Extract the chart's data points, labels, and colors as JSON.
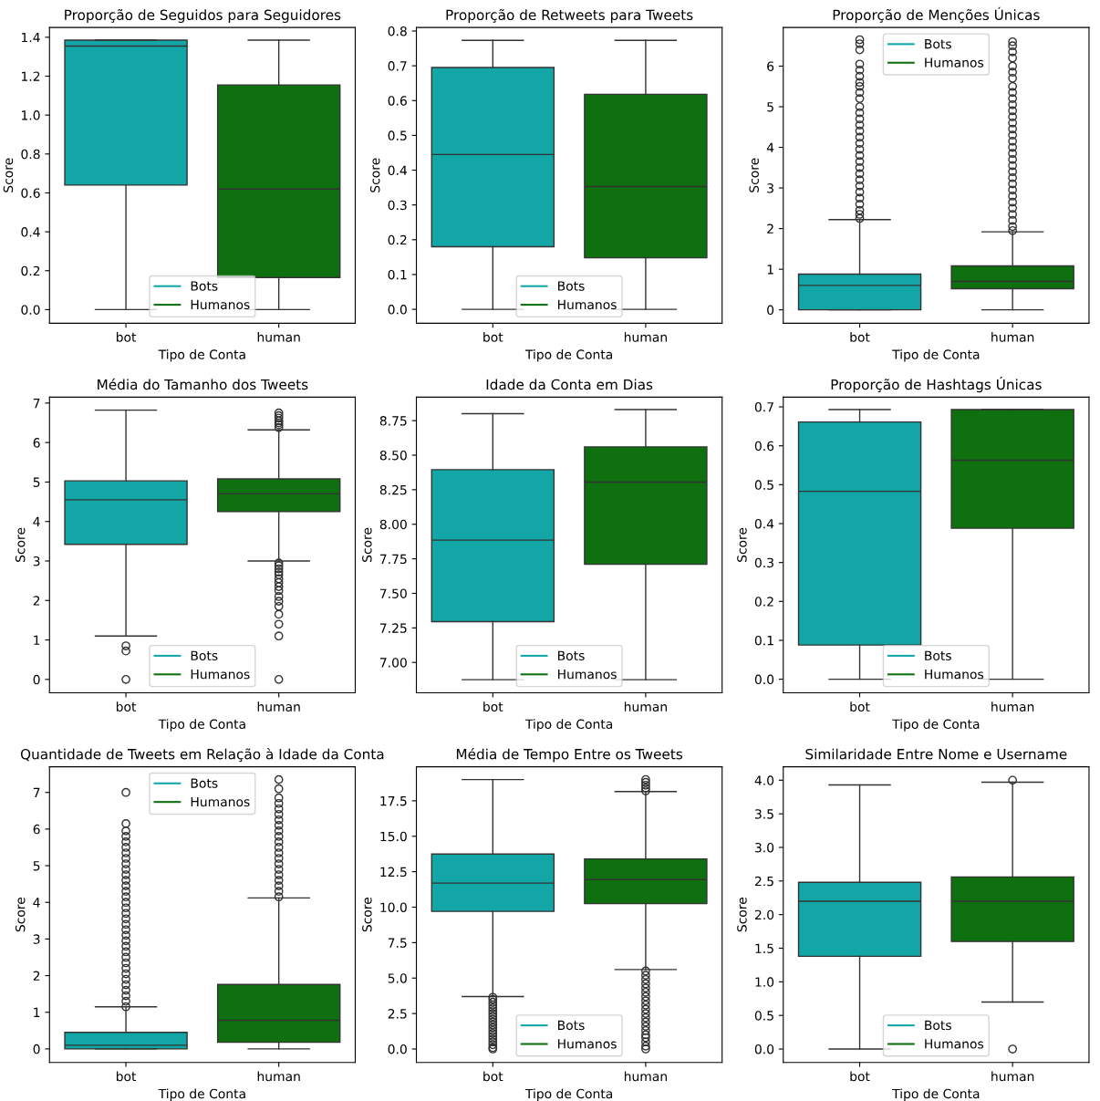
{
  "chart_data": [
    {
      "type": "box",
      "title": "Proporção de Seguidos para Seguidores",
      "xlabel": "Tipo de Conta",
      "ylabel": "Score",
      "categories": [
        "bot",
        "human"
      ],
      "ylim": [
        -0.07,
        1.45
      ],
      "yticks": [
        {
          "value": 0,
          "label": "0.0"
        },
        0.2,
        0.4,
        0.6,
        0.8,
        {
          "value": 1,
          "label": "1.0"
        },
        1.2,
        1.4
      ],
      "legend": "bottom",
      "series": [
        {
          "name": "Bots",
          "color": "#13a6a6",
          "boxes": [
            {
              "low": 0,
              "q1": 0.64,
              "median": 1.355,
              "q3": 1.385,
              "high": 1.385
            },
            null
          ]
        },
        {
          "name": "Humanos",
          "color": "#0e700e",
          "boxes": [
            null,
            {
              "low": 0,
              "q1": 0.165,
              "median": 0.62,
              "q3": 1.155,
              "high": 1.385
            }
          ]
        }
      ]
    },
    {
      "type": "box",
      "title": "Proporção de Retweets para Tweets",
      "xlabel": "Tipo de Conta",
      "ylabel": "Score",
      "categories": [
        "bot",
        "human"
      ],
      "ylim": [
        -0.04,
        0.81
      ],
      "yticks": [
        {
          "value": 0,
          "label": "0.0"
        },
        0.1,
        0.2,
        0.3,
        0.4,
        0.5,
        0.6,
        0.7,
        0.8
      ],
      "legend": "bottom",
      "series": [
        {
          "name": "Bots",
          "color": "#13a6a6",
          "boxes": [
            {
              "low": 0,
              "q1": 0.18,
              "median": 0.445,
              "q3": 0.695,
              "high": 0.773
            },
            null
          ]
        },
        {
          "name": "Humanos",
          "color": "#0e700e",
          "boxes": [
            null,
            {
              "low": 0,
              "q1": 0.148,
              "median": 0.353,
              "q3": 0.618,
              "high": 0.773
            }
          ]
        }
      ]
    },
    {
      "type": "box",
      "title": "Proporção de Menções Únicas",
      "xlabel": "Tipo de Conta",
      "ylabel": "Score",
      "categories": [
        "bot",
        "human"
      ],
      "ylim": [
        -0.33,
        6.95
      ],
      "yticks": [
        0,
        1,
        2,
        3,
        4,
        5,
        6
      ],
      "legend": "top",
      "series": [
        {
          "name": "Bots",
          "color": "#13a6a6",
          "boxes": [
            {
              "low": 0,
              "q1": 0,
              "median": 0.6,
              "q3": 0.88,
              "high": 2.22,
              "outliers": [
                2.25,
                2.35,
                2.45,
                2.6,
                2.75,
                2.9,
                3.05,
                3.2,
                3.35,
                3.5,
                3.65,
                3.8,
                3.95,
                4.1,
                4.25,
                4.4,
                4.55,
                4.7,
                4.85,
                5.0,
                5.2,
                5.35,
                5.5,
                5.6,
                5.75,
                5.9,
                6.05,
                6.4,
                6.55,
                6.65
              ]
            },
            null
          ]
        },
        {
          "name": "Humanos",
          "color": "#0e700e",
          "boxes": [
            null,
            {
              "low": 0,
              "q1": 0.52,
              "median": 0.7,
              "q3": 1.08,
              "high": 1.92,
              "outliers": [
                1.95,
                2.05,
                2.2,
                2.35,
                2.5,
                2.65,
                2.8,
                2.95,
                3.1,
                3.25,
                3.4,
                3.55,
                3.7,
                3.85,
                4.0,
                4.15,
                4.3,
                4.45,
                4.6,
                4.75,
                4.9,
                5.05,
                5.2,
                5.35,
                5.5,
                5.7,
                5.85,
                6.0,
                6.2,
                6.35,
                6.5,
                6.6
              ]
            }
          ]
        }
      ]
    },
    {
      "type": "box",
      "title": "Média do Tamanho dos Tweets",
      "xlabel": "Tipo de Conta",
      "ylabel": "Score",
      "categories": [
        "bot",
        "human"
      ],
      "ylim": [
        -0.34,
        7.15
      ],
      "yticks": [
        0,
        1,
        2,
        3,
        4,
        5,
        6,
        7
      ],
      "legend": "bottom",
      "series": [
        {
          "name": "Bots",
          "color": "#13a6a6",
          "boxes": [
            {
              "low": 1.1,
              "q1": 3.42,
              "median": 4.55,
              "q3": 5.03,
              "high": 6.82,
              "outliers": [
                0.85,
                0.72,
                0.0
              ]
            },
            null
          ]
        },
        {
          "name": "Humanos",
          "color": "#0e700e",
          "boxes": [
            null,
            {
              "low": 3.0,
              "q1": 4.25,
              "median": 4.7,
              "q3": 5.08,
              "high": 6.32,
              "outliers": [
                6.38,
                6.45,
                6.5,
                6.55,
                6.62,
                6.68,
                6.75,
                2.95,
                2.88,
                2.8,
                2.72,
                2.65,
                2.55,
                2.45,
                2.35,
                2.25,
                2.1,
                1.98,
                1.85,
                1.65,
                1.4,
                1.1,
                0.0
              ]
            }
          ]
        }
      ]
    },
    {
      "type": "box",
      "title": "Idade da Conta em Dias",
      "xlabel": "Tipo de Conta",
      "ylabel": "Score",
      "categories": [
        "bot",
        "human"
      ],
      "ylim": [
        6.78,
        8.92
      ],
      "yticks": [
        {
          "value": 7.0,
          "label": "7.00"
        },
        {
          "value": 7.25,
          "label": "7.25"
        },
        {
          "value": 7.5,
          "label": "7.50"
        },
        {
          "value": 7.75,
          "label": "7.75"
        },
        {
          "value": 8.0,
          "label": "8.00"
        },
        {
          "value": 8.25,
          "label": "8.25"
        },
        {
          "value": 8.5,
          "label": "8.50"
        },
        {
          "value": 8.75,
          "label": "8.75"
        }
      ],
      "legend": "bottom",
      "series": [
        {
          "name": "Bots",
          "color": "#13a6a6",
          "boxes": [
            {
              "low": 6.875,
              "q1": 7.295,
              "median": 7.885,
              "q3": 8.395,
              "high": 8.8
            },
            null
          ]
        },
        {
          "name": "Humanos",
          "color": "#0e700e",
          "boxes": [
            null,
            {
              "low": 6.875,
              "q1": 7.71,
              "median": 8.305,
              "q3": 8.56,
              "high": 8.83
            }
          ]
        }
      ]
    },
    {
      "type": "box",
      "title": "Proporção de Hashtags Únicas",
      "xlabel": "Tipo de Conta",
      "ylabel": "Score",
      "categories": [
        "bot",
        "human"
      ],
      "ylim": [
        -0.035,
        0.725
      ],
      "yticks": [
        {
          "value": 0,
          "label": "0.0"
        },
        0.1,
        0.2,
        0.3,
        0.4,
        0.5,
        0.6,
        0.7
      ],
      "legend": "bottom",
      "series": [
        {
          "name": "Bots",
          "color": "#13a6a6",
          "boxes": [
            {
              "low": 0,
              "q1": 0.088,
              "median": 0.483,
              "q3": 0.661,
              "high": 0.693
            },
            null
          ]
        },
        {
          "name": "Humanos",
          "color": "#0e700e",
          "boxes": [
            null,
            {
              "low": 0,
              "q1": 0.388,
              "median": 0.563,
              "q3": 0.693,
              "high": 0.693
            }
          ]
        }
      ]
    },
    {
      "type": "box",
      "title": "Quantidade de Tweets em Relação à Idade da Conta",
      "xlabel": "Tipo de Conta",
      "ylabel": "Score",
      "categories": [
        "bot",
        "human"
      ],
      "ylim": [
        -0.37,
        7.7
      ],
      "yticks": [
        0,
        1,
        2,
        3,
        4,
        5,
        6,
        7
      ],
      "legend": "top",
      "series": [
        {
          "name": "Bots",
          "color": "#13a6a6",
          "boxes": [
            {
              "low": 0,
              "q1": 0,
              "median": 0.1,
              "q3": 0.45,
              "high": 1.15,
              "outliers": [
                1.15,
                1.3,
                1.45,
                1.6,
                1.75,
                1.9,
                2.05,
                2.2,
                2.35,
                2.5,
                2.65,
                2.8,
                2.95,
                3.1,
                3.25,
                3.4,
                3.55,
                3.7,
                3.85,
                4.0,
                4.15,
                4.3,
                4.45,
                4.6,
                4.75,
                4.9,
                5.05,
                5.2,
                5.35,
                5.5,
                5.65,
                5.8,
                5.95,
                6.15,
                7.0
              ]
            },
            null
          ]
        },
        {
          "name": "Humanos",
          "color": "#0e700e",
          "boxes": [
            null,
            {
              "low": 0,
              "q1": 0.18,
              "median": 0.78,
              "q3": 1.76,
              "high": 4.12,
              "outliers": [
                4.15,
                4.3,
                4.45,
                4.6,
                4.75,
                4.9,
                5.05,
                5.2,
                5.35,
                5.5,
                5.65,
                5.8,
                5.95,
                6.1,
                6.25,
                6.4,
                6.55,
                6.7,
                6.85,
                7.1,
                7.35
              ]
            }
          ]
        }
      ]
    },
    {
      "type": "box",
      "title": "Média de Tempo Entre os Tweets",
      "xlabel": "Tipo de Conta",
      "ylabel": "Score",
      "categories": [
        "bot",
        "human"
      ],
      "ylim": [
        -0.95,
        19.9
      ],
      "yticks": [
        {
          "value": 0,
          "label": "0.0"
        },
        2.5,
        {
          "value": 5,
          "label": "5.0"
        },
        7.5,
        {
          "value": 10,
          "label": "10.0"
        },
        12.5,
        {
          "value": 15,
          "label": "15.0"
        },
        17.5
      ],
      "legend": "bottom",
      "series": [
        {
          "name": "Bots",
          "color": "#13a6a6",
          "boxes": [
            {
              "low": 3.7,
              "q1": 9.7,
              "median": 11.7,
              "q3": 13.75,
              "high": 19.0,
              "outliers": [
                0.0,
                0.1,
                0.3,
                0.5,
                0.7,
                0.9,
                1.1,
                1.3,
                1.5,
                1.7,
                1.9,
                2.1,
                2.3,
                2.5,
                2.7,
                2.9,
                3.1,
                3.3,
                3.5,
                3.65
              ]
            },
            null
          ]
        },
        {
          "name": "Humanos",
          "color": "#0e700e",
          "boxes": [
            null,
            {
              "low": 5.6,
              "q1": 10.25,
              "median": 11.95,
              "q3": 13.4,
              "high": 18.15,
              "outliers": [
                18.2,
                18.4,
                18.6,
                18.8,
                19.0,
                0.0,
                0.2,
                0.5,
                0.8,
                1.0,
                1.3,
                1.6,
                1.9,
                2.2,
                2.5,
                2.8,
                3.1,
                3.4,
                3.7,
                4.0,
                4.3,
                4.6,
                4.9,
                5.2,
                5.5
              ]
            }
          ]
        }
      ]
    },
    {
      "type": "box",
      "title": "Similaridade Entre Nome e Username",
      "xlabel": "Tipo de Conta",
      "ylabel": "Score",
      "categories": [
        "bot",
        "human"
      ],
      "ylim": [
        -0.2,
        4.2
      ],
      "yticks": [
        {
          "value": 0,
          "label": "0.0"
        },
        0.5,
        {
          "value": 1,
          "label": "1.0"
        },
        1.5,
        {
          "value": 2,
          "label": "2.0"
        },
        2.5,
        {
          "value": 3,
          "label": "3.0"
        },
        3.5,
        {
          "value": 4,
          "label": "4.0"
        }
      ],
      "legend": "bottom",
      "series": [
        {
          "name": "Bots",
          "color": "#13a6a6",
          "boxes": [
            {
              "low": 0,
              "q1": 1.38,
              "median": 2.2,
              "q3": 2.48,
              "high": 3.93
            },
            null
          ]
        },
        {
          "name": "Humanos",
          "color": "#0e700e",
          "boxes": [
            null,
            {
              "low": 0.7,
              "q1": 1.6,
              "median": 2.2,
              "q3": 2.56,
              "high": 3.97,
              "outliers": [
                4.0,
                0.0
              ]
            }
          ]
        }
      ]
    }
  ]
}
